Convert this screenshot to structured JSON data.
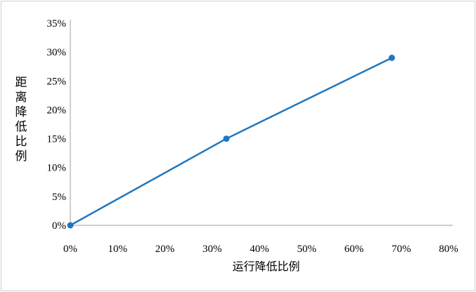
{
  "chart_data": {
    "type": "line",
    "xlabel": "运行降低比例",
    "ylabel": "距离降低比例",
    "xlim": [
      0,
      80
    ],
    "ylim": [
      0,
      35
    ],
    "x_ticks": [
      "0%",
      "10%",
      "20%",
      "30%",
      "40%",
      "50%",
      "60%",
      "70%",
      "80%"
    ],
    "y_ticks": [
      "0%",
      "5%",
      "10%",
      "15%",
      "20%",
      "25%",
      "30%",
      "35%"
    ],
    "grid": false,
    "series": [
      {
        "x": [
          0,
          33,
          68
        ],
        "y": [
          0,
          15,
          29
        ],
        "color": "#1f77c0",
        "markers": true
      }
    ]
  }
}
